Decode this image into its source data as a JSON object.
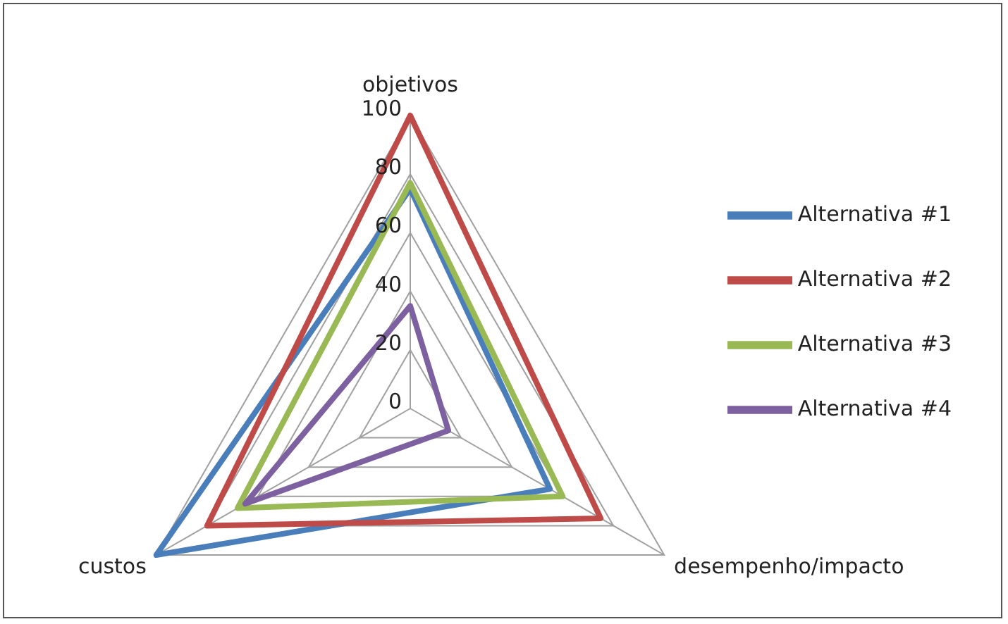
{
  "chart_data": {
    "type": "radar",
    "categories": [
      "objetivos",
      "desempenho/impacto",
      "custos"
    ],
    "ylim": [
      0,
      100
    ],
    "yticks": [
      0,
      20,
      40,
      60,
      80,
      100
    ],
    "grid": true,
    "legend": "right",
    "series": [
      {
        "name": "Alternativa #1",
        "color": "#4a7ebb",
        "values": [
          75,
          55,
          100
        ]
      },
      {
        "name": "Alternativa #2",
        "color": "#be4b48",
        "values": [
          100,
          75,
          80
        ]
      },
      {
        "name": "Alternativa #3",
        "color": "#98b954",
        "values": [
          77,
          60,
          68
        ]
      },
      {
        "name": "Alternativa #4",
        "color": "#7d60a0",
        "values": [
          35,
          15,
          65
        ]
      }
    ]
  }
}
